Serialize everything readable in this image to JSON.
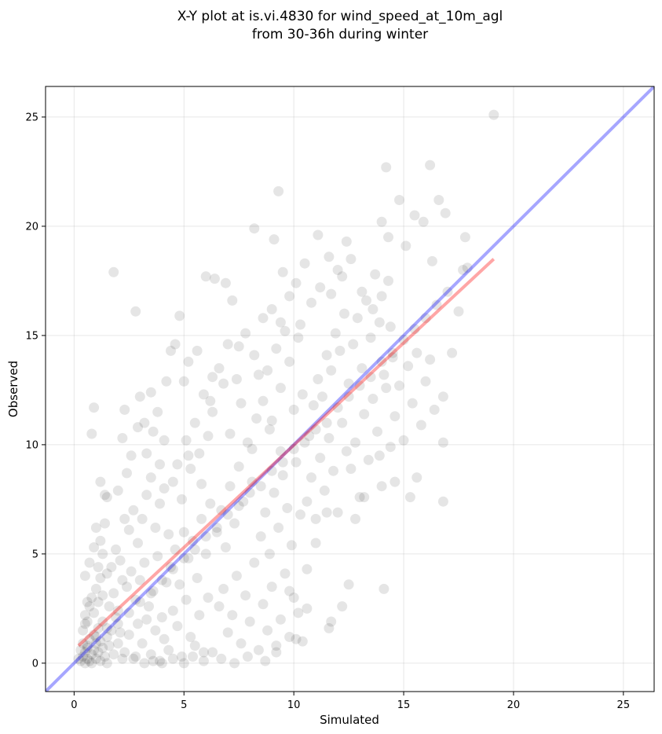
{
  "chart_data": {
    "type": "scatter",
    "title_line1": "X-Y plot at is.vi.4830 for wind_speed_at_10m_agl",
    "title_line2": "from 30-36h during winter",
    "xlabel": "Simulated",
    "ylabel": "Observed",
    "xlim": [
      -1.3,
      26.4
    ],
    "ylim": [
      -1.3,
      26.4
    ],
    "x_ticks": [
      0,
      5,
      10,
      15,
      20,
      25
    ],
    "y_ticks": [
      0,
      5,
      10,
      15,
      20,
      25
    ],
    "grid": true,
    "point_color": "#000000",
    "point_alpha": 0.1,
    "one_to_one_line": {
      "color": "#0000ff",
      "alpha": 0.35,
      "from": [
        -1.3,
        -1.3
      ],
      "to": [
        26.4,
        26.4
      ]
    },
    "fit_line": {
      "color": "#ff0000",
      "alpha": 0.35,
      "from": [
        0.2,
        0.8
      ],
      "to": [
        19.1,
        18.5
      ]
    },
    "points": [
      [
        0.3,
        0.1
      ],
      [
        0.4,
        0.3
      ],
      [
        0.5,
        0.0
      ],
      [
        0.5,
        0.5
      ],
      [
        0.6,
        0.2
      ],
      [
        0.6,
        0.8
      ],
      [
        0.7,
        0.1
      ],
      [
        0.7,
        1.1
      ],
      [
        0.8,
        0.4
      ],
      [
        0.8,
        0.0
      ],
      [
        0.9,
        0.6
      ],
      [
        0.9,
        1.3
      ],
      [
        1.0,
        0.2
      ],
      [
        1.0,
        0.9
      ],
      [
        1.1,
        0.5
      ],
      [
        1.1,
        1.6
      ],
      [
        1.2,
        0.1
      ],
      [
        1.2,
        1.0
      ],
      [
        1.3,
        0.7
      ],
      [
        1.3,
        1.9
      ],
      [
        1.4,
        0.3
      ],
      [
        1.5,
        1.2
      ],
      [
        1.5,
        0.0
      ],
      [
        1.6,
        0.8
      ],
      [
        1.7,
        1.5
      ],
      [
        1.8,
        0.4
      ],
      [
        1.9,
        2.1
      ],
      [
        2.0,
        0.9
      ],
      [
        2.1,
        1.4
      ],
      [
        2.2,
        0.2
      ],
      [
        0.4,
        1.5
      ],
      [
        0.5,
        2.2
      ],
      [
        0.6,
        1.9
      ],
      [
        0.7,
        2.6
      ],
      [
        0.8,
        3.0
      ],
      [
        0.9,
        2.3
      ],
      [
        1.0,
        3.4
      ],
      [
        1.1,
        2.8
      ],
      [
        1.2,
        3.9
      ],
      [
        1.3,
        3.1
      ],
      [
        0.5,
        4.0
      ],
      [
        0.7,
        4.6
      ],
      [
        0.9,
        5.3
      ],
      [
        1.1,
        4.4
      ],
      [
        1.3,
        5.0
      ],
      [
        1.5,
        4.1
      ],
      [
        1.0,
        6.2
      ],
      [
        1.2,
        5.6
      ],
      [
        1.4,
        6.4
      ],
      [
        0.8,
        10.5
      ],
      [
        0.9,
        11.7
      ],
      [
        1.8,
        17.9
      ],
      [
        2.2,
        10.3
      ],
      [
        2.3,
        11.6
      ],
      [
        2.8,
        16.1
      ],
      [
        3.0,
        12.2
      ],
      [
        3.2,
        11.0
      ],
      [
        3.5,
        12.4
      ],
      [
        3.9,
        9.1
      ],
      [
        4.1,
        10.2
      ],
      [
        2.5,
        6.1
      ],
      [
        2.7,
        7.0
      ],
      [
        2.9,
        5.5
      ],
      [
        3.1,
        6.6
      ],
      [
        3.3,
        7.7
      ],
      [
        3.5,
        8.5
      ],
      [
        3.7,
        6.2
      ],
      [
        3.9,
        7.3
      ],
      [
        4.1,
        8.0
      ],
      [
        4.3,
        5.9
      ],
      [
        2.4,
        3.5
      ],
      [
        2.6,
        4.2
      ],
      [
        2.8,
        2.9
      ],
      [
        3.0,
        3.8
      ],
      [
        3.2,
        4.6
      ],
      [
        3.4,
        2.6
      ],
      [
        3.6,
        3.3
      ],
      [
        3.8,
        4.9
      ],
      [
        4.0,
        2.1
      ],
      [
        4.2,
        3.7
      ],
      [
        2.3,
        0.5
      ],
      [
        2.5,
        1.3
      ],
      [
        2.7,
        0.2
      ],
      [
        2.9,
        1.8
      ],
      [
        3.1,
        0.9
      ],
      [
        3.3,
        2.0
      ],
      [
        3.5,
        0.4
      ],
      [
        3.7,
        1.5
      ],
      [
        3.9,
        0.1
      ],
      [
        4.1,
        1.1
      ],
      [
        4.3,
        0.6
      ],
      [
        4.5,
        2.4
      ],
      [
        4.7,
        1.7
      ],
      [
        4.9,
        0.3
      ],
      [
        5.1,
        2.9
      ],
      [
        5.3,
        1.2
      ],
      [
        5.5,
        0.8
      ],
      [
        5.7,
        2.2
      ],
      [
        5.9,
        0.5
      ],
      [
        6.1,
        3.0
      ],
      [
        4.4,
        4.4
      ],
      [
        4.6,
        5.2
      ],
      [
        4.8,
        3.6
      ],
      [
        5.0,
        6.0
      ],
      [
        5.2,
        4.8
      ],
      [
        5.4,
        5.6
      ],
      [
        5.6,
        3.9
      ],
      [
        5.8,
        6.6
      ],
      [
        6.0,
        5.0
      ],
      [
        6.2,
        7.3
      ],
      [
        4.5,
        8.3
      ],
      [
        4.7,
        9.1
      ],
      [
        4.9,
        7.5
      ],
      [
        5.1,
        10.2
      ],
      [
        5.3,
        8.9
      ],
      [
        5.5,
        11.0
      ],
      [
        5.7,
        9.6
      ],
      [
        5.9,
        12.3
      ],
      [
        6.1,
        10.4
      ],
      [
        6.3,
        13.1
      ],
      [
        4.6,
        14.6
      ],
      [
        4.8,
        15.9
      ],
      [
        5.0,
        12.9
      ],
      [
        5.2,
        13.8
      ],
      [
        5.6,
        14.3
      ],
      [
        6.0,
        17.7
      ],
      [
        6.4,
        17.6
      ],
      [
        6.9,
        17.4
      ],
      [
        7.2,
        16.6
      ],
      [
        7.5,
        14.5
      ],
      [
        6.5,
        6.0
      ],
      [
        6.7,
        7.0
      ],
      [
        6.9,
        5.3
      ],
      [
        7.1,
        8.1
      ],
      [
        7.3,
        6.4
      ],
      [
        7.5,
        9.0
      ],
      [
        7.7,
        7.4
      ],
      [
        7.9,
        10.1
      ],
      [
        8.1,
        8.3
      ],
      [
        8.3,
        11.2
      ],
      [
        6.6,
        2.6
      ],
      [
        6.8,
        3.4
      ],
      [
        7.0,
        1.4
      ],
      [
        7.2,
        2.2
      ],
      [
        7.4,
        4.0
      ],
      [
        7.6,
        0.9
      ],
      [
        7.8,
        3.1
      ],
      [
        8.0,
        1.9
      ],
      [
        8.2,
        4.6
      ],
      [
        8.4,
        0.6
      ],
      [
        8.6,
        2.7
      ],
      [
        8.8,
        1.5
      ],
      [
        9.0,
        3.5
      ],
      [
        9.2,
        0.8
      ],
      [
        9.4,
        2.0
      ],
      [
        9.6,
        4.1
      ],
      [
        9.8,
        1.2
      ],
      [
        10.0,
        3.0
      ],
      [
        10.2,
        2.3
      ],
      [
        10.4,
        1.0
      ],
      [
        8.5,
        5.8
      ],
      [
        8.7,
        6.9
      ],
      [
        8.9,
        5.0
      ],
      [
        9.1,
        7.8
      ],
      [
        9.3,
        6.2
      ],
      [
        9.5,
        8.6
      ],
      [
        9.7,
        7.1
      ],
      [
        9.9,
        5.4
      ],
      [
        10.1,
        9.2
      ],
      [
        10.3,
        6.8
      ],
      [
        8.6,
        12.0
      ],
      [
        8.8,
        13.4
      ],
      [
        9.0,
        11.1
      ],
      [
        9.2,
        14.4
      ],
      [
        9.4,
        12.6
      ],
      [
        9.6,
        15.2
      ],
      [
        9.8,
        13.8
      ],
      [
        10.0,
        11.6
      ],
      [
        10.2,
        14.9
      ],
      [
        10.4,
        12.3
      ],
      [
        8.2,
        19.9
      ],
      [
        9.1,
        19.4
      ],
      [
        9.3,
        21.6
      ],
      [
        9.5,
        17.9
      ],
      [
        10.1,
        17.4
      ],
      [
        10.5,
        18.3
      ],
      [
        11.1,
        19.6
      ],
      [
        11.6,
        18.6
      ],
      [
        12.0,
        18.0
      ],
      [
        12.4,
        19.3
      ],
      [
        10.6,
        7.4
      ],
      [
        10.8,
        8.5
      ],
      [
        11.0,
        6.6
      ],
      [
        11.2,
        9.4
      ],
      [
        11.4,
        7.9
      ],
      [
        11.6,
        10.3
      ],
      [
        11.8,
        8.8
      ],
      [
        12.0,
        6.9
      ],
      [
        12.2,
        11.0
      ],
      [
        12.4,
        9.7
      ],
      [
        10.7,
        10.4
      ],
      [
        10.9,
        11.8
      ],
      [
        11.1,
        13.0
      ],
      [
        11.3,
        12.2
      ],
      [
        11.5,
        14.1
      ],
      [
        11.7,
        13.4
      ],
      [
        11.9,
        15.1
      ],
      [
        12.1,
        14.3
      ],
      [
        12.3,
        16.0
      ],
      [
        12.5,
        12.8
      ],
      [
        12.7,
        14.6
      ],
      [
        12.9,
        15.8
      ],
      [
        13.1,
        13.5
      ],
      [
        13.3,
        16.6
      ],
      [
        13.5,
        14.9
      ],
      [
        13.7,
        17.8
      ],
      [
        13.9,
        15.6
      ],
      [
        14.1,
        13.2
      ],
      [
        14.3,
        17.5
      ],
      [
        14.5,
        14.0
      ],
      [
        12.6,
        8.9
      ],
      [
        12.8,
        10.1
      ],
      [
        13.0,
        7.6
      ],
      [
        13.2,
        11.4
      ],
      [
        13.4,
        9.3
      ],
      [
        13.6,
        12.1
      ],
      [
        13.8,
        10.6
      ],
      [
        14.0,
        8.1
      ],
      [
        14.2,
        12.6
      ],
      [
        14.4,
        9.9
      ],
      [
        14.6,
        11.3
      ],
      [
        14.8,
        12.7
      ],
      [
        15.0,
        10.2
      ],
      [
        15.2,
        13.6
      ],
      [
        15.4,
        11.9
      ],
      [
        15.6,
        14.2
      ],
      [
        15.8,
        10.9
      ],
      [
        16.0,
        12.9
      ],
      [
        16.2,
        13.9
      ],
      [
        16.4,
        11.6
      ],
      [
        14.2,
        22.7
      ],
      [
        14.8,
        21.2
      ],
      [
        15.5,
        20.5
      ],
      [
        15.9,
        20.2
      ],
      [
        16.2,
        22.8
      ],
      [
        16.6,
        21.2
      ],
      [
        16.9,
        20.6
      ],
      [
        17.8,
        19.5
      ],
      [
        19.1,
        25.1
      ],
      [
        17.7,
        18.0
      ],
      [
        14.0,
        20.2
      ],
      [
        14.3,
        19.5
      ],
      [
        15.1,
        19.1
      ],
      [
        16.3,
        18.4
      ],
      [
        17.5,
        16.1
      ],
      [
        17.2,
        14.2
      ],
      [
        16.8,
        12.2
      ],
      [
        16.8,
        10.1
      ],
      [
        16.8,
        7.4
      ],
      [
        15.6,
        8.5
      ],
      [
        15.3,
        7.6
      ],
      [
        14.6,
        8.3
      ],
      [
        13.9,
        9.5
      ],
      [
        13.2,
        7.6
      ],
      [
        12.8,
        6.6
      ],
      [
        11.5,
        6.9
      ],
      [
        11.0,
        5.5
      ],
      [
        10.6,
        4.3
      ],
      [
        12.5,
        3.6
      ],
      [
        14.1,
        3.4
      ],
      [
        12.2,
        2.6
      ],
      [
        11.7,
        1.9
      ],
      [
        11.6,
        1.6
      ],
      [
        10.6,
        2.5
      ],
      [
        10.1,
        1.1
      ],
      [
        9.8,
        3.3
      ],
      [
        9.2,
        0.5
      ],
      [
        8.7,
        0.1
      ],
      [
        7.9,
        0.3
      ],
      [
        7.3,
        0.0
      ],
      [
        6.7,
        0.2
      ],
      [
        6.3,
        0.5
      ],
      [
        5.9,
        0.1
      ],
      [
        5.4,
        0.3
      ],
      [
        5.0,
        0.0
      ],
      [
        4.5,
        0.2
      ],
      [
        4.0,
        0.0
      ],
      [
        3.6,
        0.1
      ],
      [
        3.2,
        0.0
      ],
      [
        2.8,
        0.3
      ],
      [
        17.9,
        18.1
      ],
      [
        17.0,
        17.0
      ],
      [
        16.5,
        16.4
      ],
      [
        16.0,
        15.8
      ],
      [
        15.5,
        15.3
      ],
      [
        15.0,
        14.8
      ],
      [
        14.5,
        14.2
      ],
      [
        14.0,
        13.8
      ],
      [
        13.5,
        13.1
      ],
      [
        13.0,
        12.7
      ],
      [
        12.5,
        12.2
      ],
      [
        12.0,
        11.7
      ],
      [
        11.5,
        11.0
      ],
      [
        11.0,
        10.7
      ],
      [
        10.5,
        10.1
      ],
      [
        10.0,
        9.8
      ],
      [
        9.5,
        9.2
      ],
      [
        9.0,
        8.8
      ],
      [
        8.5,
        8.1
      ],
      [
        8.0,
        7.8
      ],
      [
        7.5,
        7.2
      ],
      [
        7.0,
        6.8
      ],
      [
        6.5,
        6.2
      ],
      [
        6.0,
        5.8
      ],
      [
        5.5,
        5.2
      ],
      [
        5.0,
        4.8
      ],
      [
        4.5,
        4.3
      ],
      [
        4.0,
        3.8
      ],
      [
        3.5,
        3.2
      ],
      [
        3.0,
        2.8
      ],
      [
        2.5,
        2.3
      ],
      [
        2.0,
        1.8
      ],
      [
        1.5,
        1.6
      ],
      [
        1.0,
        1.2
      ],
      [
        0.6,
        0.7
      ],
      [
        0.3,
        0.6
      ],
      [
        0.2,
        0.2
      ],
      [
        0.4,
        0.9
      ],
      [
        0.5,
        1.8
      ],
      [
        0.6,
        2.8
      ],
      [
        5.2,
        9.5
      ],
      [
        5.8,
        8.2
      ],
      [
        6.3,
        11.5
      ],
      [
        6.8,
        12.8
      ],
      [
        7.1,
        10.5
      ],
      [
        7.6,
        11.9
      ],
      [
        8.1,
        9.8
      ],
      [
        8.4,
        13.2
      ],
      [
        8.9,
        10.7
      ],
      [
        9.4,
        9.7
      ],
      [
        6.2,
        12.0
      ],
      [
        6.6,
        13.5
      ],
      [
        7.0,
        14.6
      ],
      [
        7.4,
        13.0
      ],
      [
        7.8,
        15.1
      ],
      [
        8.2,
        14.1
      ],
      [
        8.6,
        15.8
      ],
      [
        9.0,
        16.2
      ],
      [
        9.4,
        15.6
      ],
      [
        9.8,
        16.8
      ],
      [
        10.3,
        15.5
      ],
      [
        10.8,
        16.5
      ],
      [
        11.2,
        17.2
      ],
      [
        11.7,
        16.9
      ],
      [
        12.2,
        17.7
      ],
      [
        12.6,
        18.5
      ],
      [
        13.1,
        17.0
      ],
      [
        13.6,
        16.2
      ],
      [
        14.0,
        16.8
      ],
      [
        14.4,
        15.4
      ],
      [
        1.6,
        2.6
      ],
      [
        1.8,
        3.2
      ],
      [
        2.0,
        2.4
      ],
      [
        2.2,
        3.8
      ],
      [
        1.7,
        4.4
      ],
      [
        1.9,
        5.2
      ],
      [
        2.1,
        4.7
      ],
      [
        2.3,
        6.6
      ],
      [
        2.0,
        7.9
      ],
      [
        1.5,
        7.6
      ],
      [
        1.2,
        8.3
      ],
      [
        1.4,
        7.7
      ],
      [
        2.4,
        8.7
      ],
      [
        2.6,
        9.5
      ],
      [
        2.9,
        10.8
      ],
      [
        3.3,
        9.6
      ],
      [
        3.6,
        10.6
      ],
      [
        3.8,
        11.5
      ],
      [
        4.2,
        12.9
      ],
      [
        4.4,
        14.3
      ]
    ]
  }
}
